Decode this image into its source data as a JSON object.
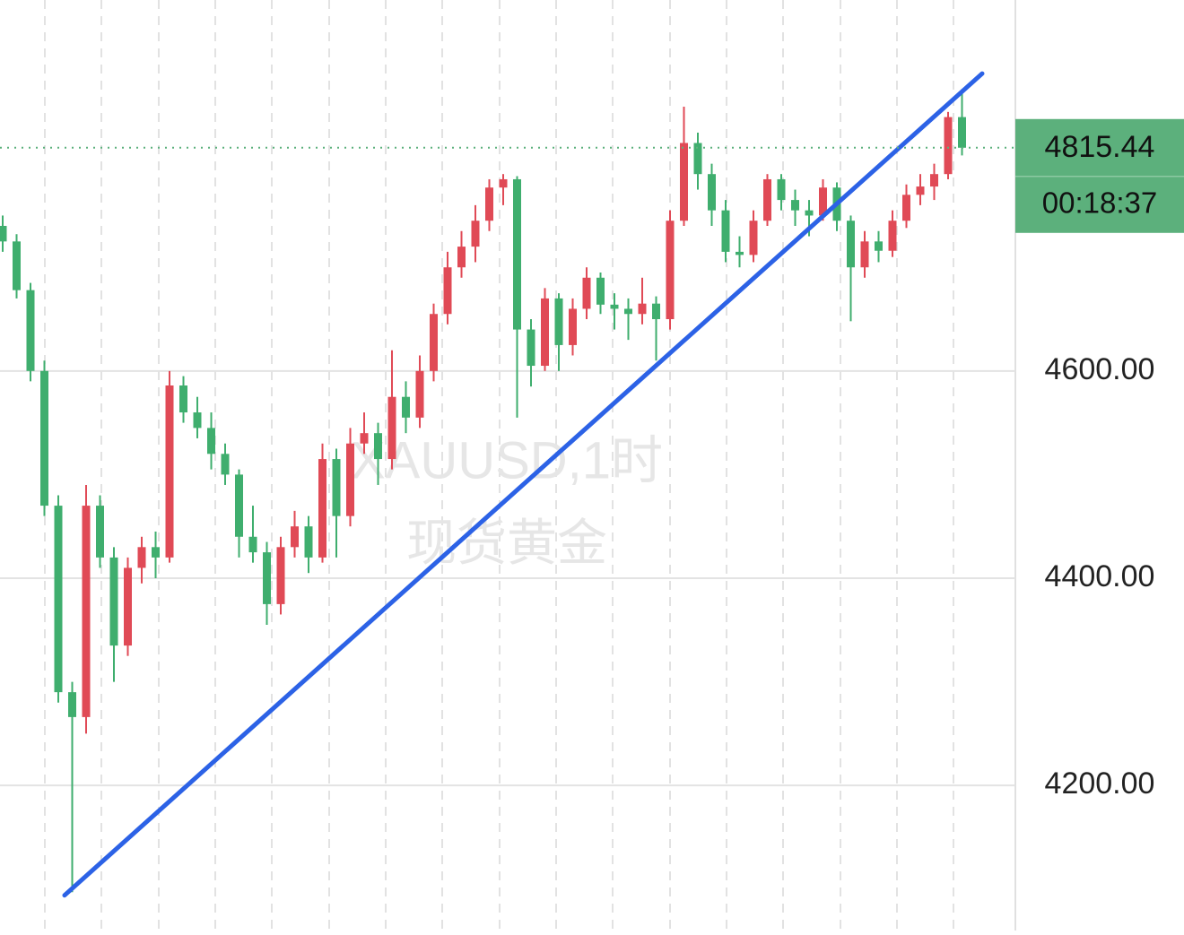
{
  "chart_data": {
    "type": "candlestick",
    "watermark": [
      "XAUUSD,1时",
      "现货黄金"
    ],
    "up_color": "#e04a56",
    "down_color": "#3fae6e",
    "open": [
      4740,
      4725,
      4678,
      4600,
      4470,
      4290,
      4266,
      4470,
      4420,
      4335,
      4410,
      4430,
      4420,
      4586,
      4560,
      4545,
      4520,
      4500,
      4440,
      4425,
      4375,
      4430,
      4450,
      4420,
      4515,
      4460,
      4530,
      4540,
      4515,
      4575,
      4555,
      4600,
      4655,
      4700,
      4720,
      4745,
      4777,
      4785,
      4640,
      4605,
      4670,
      4625,
      4660,
      4690,
      4664,
      4660,
      4655,
      4665,
      4650,
      4745,
      4820,
      4790,
      4755,
      4715,
      4712,
      4745,
      4785,
      4765,
      4755,
      4750,
      4777,
      4745,
      4700,
      4725,
      4716,
      4745,
      4770,
      4778,
      4790,
      4845
    ],
    "high": [
      4750,
      4732,
      4685,
      4610,
      4480,
      4300,
      4490,
      4480,
      4430,
      4420,
      4440,
      4445,
      4600,
      4595,
      4575,
      4560,
      4530,
      4505,
      4470,
      4435,
      4440,
      4465,
      4460,
      4530,
      4525,
      4545,
      4560,
      4550,
      4620,
      4590,
      4615,
      4665,
      4715,
      4735,
      4760,
      4785,
      4790,
      4788,
      4650,
      4680,
      4675,
      4670,
      4700,
      4695,
      4675,
      4670,
      4690,
      4672,
      4755,
      4855,
      4830,
      4800,
      4765,
      4730,
      4755,
      4790,
      4790,
      4775,
      4765,
      4785,
      4782,
      4750,
      4735,
      4735,
      4755,
      4780,
      4790,
      4800,
      4850,
      4872
    ],
    "low": [
      4715,
      4670,
      4590,
      4460,
      4280,
      4097,
      4250,
      4410,
      4300,
      4325,
      4395,
      4400,
      4415,
      4550,
      4535,
      4505,
      4490,
      4420,
      4415,
      4355,
      4365,
      4420,
      4405,
      4415,
      4420,
      4450,
      4520,
      4490,
      4505,
      4540,
      4545,
      4590,
      4645,
      4690,
      4705,
      4735,
      4760,
      4555,
      4585,
      4600,
      4600,
      4615,
      4650,
      4655,
      4640,
      4630,
      4645,
      4610,
      4640,
      4740,
      4775,
      4740,
      4705,
      4700,
      4705,
      4740,
      4755,
      4740,
      4730,
      4745,
      4735,
      4648,
      4690,
      4705,
      4710,
      4738,
      4760,
      4765,
      4785,
      4808
    ],
    "close": [
      4725,
      4678,
      4600,
      4470,
      4290,
      4266,
      4470,
      4420,
      4335,
      4410,
      4430,
      4420,
      4586,
      4560,
      4545,
      4520,
      4500,
      4440,
      4425,
      4375,
      4430,
      4450,
      4420,
      4515,
      4460,
      4530,
      4540,
      4515,
      4575,
      4555,
      4600,
      4655,
      4700,
      4720,
      4745,
      4777,
      4785,
      4640,
      4605,
      4670,
      4625,
      4660,
      4690,
      4664,
      4660,
      4655,
      4665,
      4650,
      4745,
      4820,
      4790,
      4755,
      4715,
      4712,
      4745,
      4785,
      4765,
      4755,
      4750,
      4777,
      4745,
      4700,
      4725,
      4716,
      4745,
      4770,
      4778,
      4790,
      4845,
      4815.44
    ],
    "ylim": [
      4060,
      4958
    ],
    "yticks": [
      {
        "value": 4200,
        "label": "4200.00"
      },
      {
        "value": 4400,
        "label": "4400.00"
      },
      {
        "value": 4600,
        "label": "4600.00"
      }
    ],
    "last_price": 4815.44,
    "countdown": "00:18:37",
    "price_box_color": "#5cb07c",
    "trendline": {
      "x": [
        4.45,
        70.45
      ],
      "y": [
        4094,
        4887
      ],
      "color": "#2c62e6"
    }
  }
}
